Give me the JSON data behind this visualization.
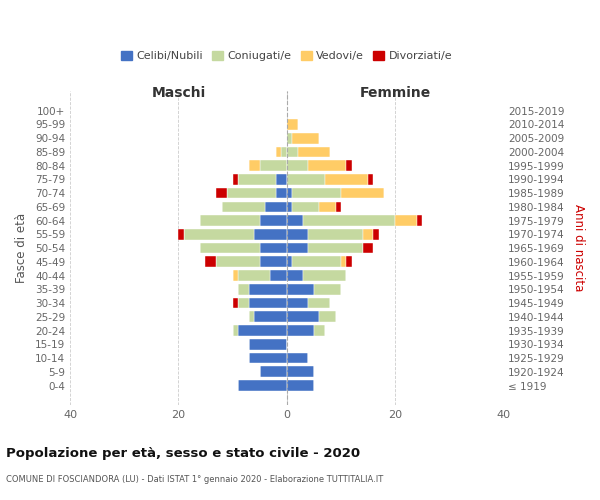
{
  "age_groups": [
    "100+",
    "95-99",
    "90-94",
    "85-89",
    "80-84",
    "75-79",
    "70-74",
    "65-69",
    "60-64",
    "55-59",
    "50-54",
    "45-49",
    "40-44",
    "35-39",
    "30-34",
    "25-29",
    "20-24",
    "15-19",
    "10-14",
    "5-9",
    "0-4"
  ],
  "birth_years": [
    "≤ 1919",
    "1920-1924",
    "1925-1929",
    "1930-1934",
    "1935-1939",
    "1940-1944",
    "1945-1949",
    "1950-1954",
    "1955-1959",
    "1960-1964",
    "1965-1969",
    "1970-1974",
    "1975-1979",
    "1980-1984",
    "1985-1989",
    "1990-1994",
    "1995-1999",
    "2000-2004",
    "2005-2009",
    "2010-2014",
    "2015-2019"
  ],
  "maschi": {
    "celibi": [
      0,
      0,
      0,
      0,
      0,
      2,
      2,
      4,
      5,
      6,
      5,
      5,
      3,
      7,
      7,
      6,
      9,
      7,
      7,
      5,
      9
    ],
    "coniugati": [
      0,
      0,
      0,
      1,
      5,
      7,
      9,
      8,
      11,
      13,
      11,
      8,
      6,
      2,
      2,
      1,
      1,
      0,
      0,
      0,
      0
    ],
    "vedovi": [
      0,
      0,
      0,
      1,
      2,
      0,
      0,
      0,
      0,
      0,
      0,
      0,
      1,
      0,
      0,
      0,
      0,
      0,
      0,
      0,
      0
    ],
    "divorziati": [
      0,
      0,
      0,
      0,
      0,
      1,
      2,
      0,
      0,
      1,
      0,
      2,
      0,
      0,
      1,
      0,
      0,
      0,
      0,
      0,
      0
    ]
  },
  "femmine": {
    "nubili": [
      0,
      0,
      0,
      0,
      0,
      0,
      1,
      1,
      3,
      4,
      4,
      1,
      3,
      5,
      4,
      6,
      5,
      0,
      4,
      5,
      5
    ],
    "coniugate": [
      0,
      0,
      1,
      2,
      4,
      7,
      9,
      5,
      17,
      10,
      10,
      9,
      8,
      5,
      4,
      3,
      2,
      0,
      0,
      0,
      0
    ],
    "vedove": [
      0,
      2,
      5,
      6,
      7,
      8,
      8,
      3,
      4,
      2,
      0,
      1,
      0,
      0,
      0,
      0,
      0,
      0,
      0,
      0,
      0
    ],
    "divorziate": [
      0,
      0,
      0,
      0,
      1,
      1,
      0,
      1,
      1,
      1,
      2,
      1,
      0,
      0,
      0,
      0,
      0,
      0,
      0,
      0,
      0
    ]
  },
  "color_celibi": "#4472C4",
  "color_coniugati": "#C5D9A0",
  "color_vedovi": "#FFCC66",
  "color_divorziati": "#CC0000",
  "title": "Popolazione per età, sesso e stato civile - 2020",
  "subtitle": "COMUNE DI FOSCIANDORA (LU) - Dati ISTAT 1° gennaio 2020 - Elaborazione TUTTITALIA.IT",
  "label_maschi": "Maschi",
  "label_femmine": "Femmine",
  "ylabel_left": "Fasce di età",
  "ylabel_right": "Anni di nascita",
  "legend_labels": [
    "Celibi/Nubili",
    "Coniugati/e",
    "Vedovi/e",
    "Divorziati/e"
  ],
  "xlim": 40,
  "bg_color": "#ffffff",
  "grid_color": "#cccccc",
  "tick_color": "#666666"
}
